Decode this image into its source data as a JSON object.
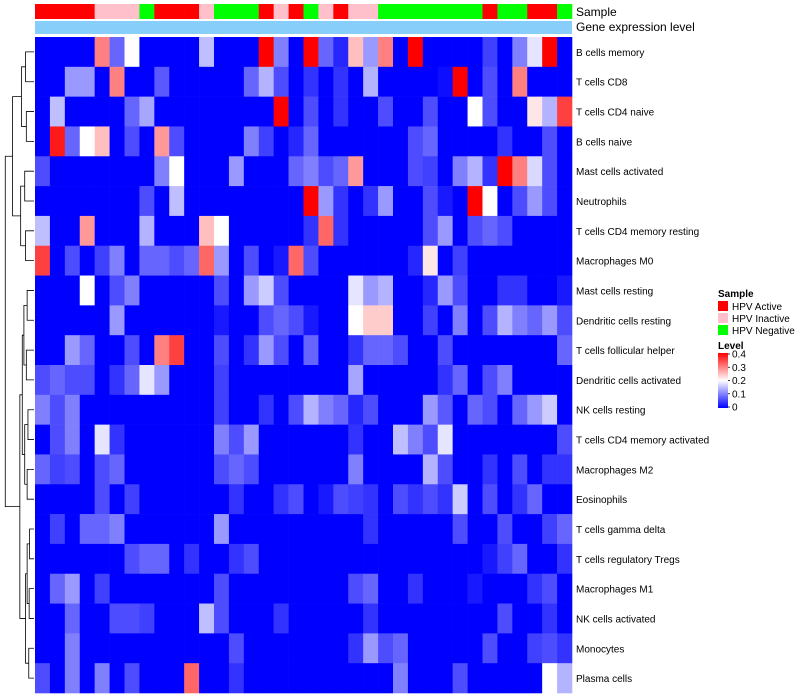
{
  "chart_data": {
    "type": "heatmap",
    "title": "",
    "annotation_labels": {
      "sample": "Sample",
      "gene_expression": "Gene expression level"
    },
    "sample_groups": [
      "A",
      "A",
      "A",
      "A",
      "I",
      "I",
      "I",
      "N",
      "A",
      "A",
      "A",
      "I",
      "N",
      "N",
      "N",
      "A",
      "I",
      "A",
      "N",
      "I",
      "A",
      "I",
      "I",
      "N",
      "N",
      "N",
      "N",
      "N",
      "N",
      "N",
      "A",
      "N",
      "N",
      "A",
      "A",
      "N"
    ],
    "rows": [
      "B cells memory",
      "T cells CD8",
      "T cells CD4 naive",
      "B cells naive",
      "Mast cells activated",
      "Neutrophils",
      "T cells CD4 memory resting",
      "Macrophages M0",
      "Mast cells resting",
      "Dendritic cells resting",
      "T cells follicular helper",
      "Dendritic cells activated",
      "NK cells resting",
      "T cells CD4 memory activated",
      "Macrophages M2",
      "Eosinophils",
      "T cells gamma delta",
      "T cells regulatory  Tregs",
      "Macrophages M1",
      "NK cells activated",
      "Monocytes",
      "Plasma cells"
    ],
    "values": [
      [
        0,
        0,
        0,
        0,
        0.3,
        0.08,
        0.2,
        0,
        0,
        0,
        0,
        0.15,
        0,
        0,
        0,
        0.42,
        0.1,
        0,
        0.42,
        0.08,
        0.03,
        0.25,
        0.12,
        0.3,
        0,
        0.4,
        0,
        0,
        0,
        0,
        0.05,
        0,
        0.1,
        0.18,
        0.4,
        0
      ],
      [
        0,
        0,
        0.12,
        0.12,
        0,
        0.3,
        0,
        0,
        0.07,
        0,
        0,
        0,
        0,
        0,
        0.08,
        0.14,
        0.06,
        0,
        0.04,
        0,
        0.04,
        0,
        0.14,
        0,
        0,
        0,
        0,
        0.01,
        0.42,
        0,
        0.06,
        0,
        0.3,
        0,
        0,
        0
      ],
      [
        0,
        0.15,
        0,
        0,
        0,
        0,
        0.08,
        0.13,
        0,
        0,
        0,
        0,
        0,
        0,
        0,
        0,
        0.42,
        0,
        0.06,
        0,
        0.04,
        0,
        0,
        0.06,
        0,
        0,
        0.06,
        0,
        0,
        0.2,
        0.06,
        0,
        0,
        0.22,
        0.14,
        0.35
      ],
      [
        0,
        0.38,
        0.08,
        0.2,
        0.25,
        0,
        0.06,
        0,
        0.28,
        0.06,
        0,
        0,
        0,
        0,
        0.1,
        0.05,
        0,
        0.03,
        0.08,
        0,
        0,
        0,
        0,
        0,
        0,
        0.06,
        0.08,
        0,
        0,
        0,
        0,
        0.04,
        0,
        0,
        0.06,
        0
      ],
      [
        0.06,
        0,
        0,
        0,
        0,
        0,
        0,
        0,
        0.1,
        0.2,
        0,
        0,
        0,
        0.12,
        0,
        0,
        0,
        0.08,
        0.1,
        0.06,
        0.08,
        0.28,
        0,
        0,
        0,
        0.06,
        0.05,
        0,
        0.1,
        0.14,
        0.04,
        0.42,
        0.3,
        0.17,
        0.06,
        0
      ],
      [
        0,
        0,
        0,
        0,
        0,
        0,
        0,
        0.06,
        0,
        0.15,
        0,
        0,
        0,
        0,
        0,
        0,
        0,
        0,
        0.42,
        0.12,
        0.04,
        0,
        0.04,
        0.12,
        0,
        0,
        0.06,
        0.02,
        0,
        0.42,
        0.2,
        0,
        0.06,
        0.12,
        0.06,
        0
      ],
      [
        0.15,
        0,
        0,
        0.28,
        0,
        0,
        0,
        0.14,
        0,
        0,
        0,
        0.25,
        0.2,
        0,
        0,
        0,
        0,
        0,
        0.04,
        0.32,
        0.04,
        0,
        0,
        0,
        0,
        0,
        0.06,
        0.12,
        0,
        0.06,
        0.08,
        0.06,
        0,
        0,
        0,
        0
      ],
      [
        0.35,
        0,
        0.06,
        0,
        0.05,
        0.1,
        0,
        0.08,
        0.08,
        0.06,
        0.08,
        0.32,
        0.12,
        0,
        0.06,
        0,
        0.02,
        0.32,
        0.06,
        0,
        0,
        0,
        0,
        0,
        0,
        0.03,
        0.22,
        0,
        0.05,
        0,
        0,
        0,
        0,
        0,
        0,
        0
      ],
      [
        0,
        0,
        0,
        0.2,
        0,
        0.06,
        0.1,
        0,
        0,
        0,
        0,
        0,
        0.06,
        0,
        0.12,
        0.16,
        0.06,
        0,
        0,
        0,
        0,
        0.18,
        0.12,
        0.14,
        0,
        0,
        0.03,
        0.12,
        0.06,
        0,
        0,
        0.04,
        0.04,
        0,
        0,
        0.02
      ],
      [
        0,
        0,
        0,
        0,
        0,
        0.12,
        0,
        0,
        0,
        0,
        0,
        0,
        0.02,
        0,
        0,
        0.06,
        0.08,
        0.06,
        0.02,
        0,
        0,
        0.2,
        0.24,
        0.24,
        0,
        0,
        0.05,
        0,
        0.1,
        0,
        0.06,
        0.14,
        0.1,
        0.08,
        0.12,
        0.06
      ],
      [
        0,
        0,
        0.12,
        0.08,
        0,
        0,
        0.06,
        0,
        0.3,
        0.35,
        0,
        0,
        0.06,
        0,
        0.04,
        0.12,
        0.06,
        0,
        0.08,
        0,
        0,
        0.04,
        0.08,
        0.08,
        0.06,
        0,
        0,
        0.06,
        0,
        0,
        0,
        0,
        0,
        0,
        0,
        0.08
      ],
      [
        0.06,
        0.08,
        0.06,
        0.06,
        0,
        0.04,
        0.08,
        0.18,
        0.12,
        0,
        0,
        0,
        0.05,
        0,
        0,
        0,
        0,
        0,
        0,
        0,
        0,
        0.13,
        0,
        0,
        0,
        0,
        0,
        0.04,
        0.08,
        0,
        0.06,
        0.1,
        0,
        0,
        0,
        0
      ],
      [
        0.1,
        0.06,
        0.1,
        0,
        0,
        0,
        0,
        0,
        0,
        0,
        0,
        0,
        0.05,
        0,
        0,
        0.04,
        0,
        0.06,
        0.14,
        0.1,
        0.08,
        0.03,
        0.06,
        0,
        0,
        0,
        0.12,
        0.07,
        0,
        0.08,
        0.06,
        0,
        0.08,
        0.12,
        0.16,
        0
      ],
      [
        0,
        0.06,
        0.1,
        0,
        0.18,
        0.04,
        0,
        0,
        0,
        0,
        0,
        0,
        0.1,
        0.06,
        0.12,
        0,
        0,
        0,
        0,
        0,
        0,
        0.04,
        0,
        0,
        0.15,
        0.1,
        0.06,
        0.18,
        0,
        0,
        0,
        0,
        0,
        0,
        0,
        0.06
      ],
      [
        0.08,
        0.05,
        0.06,
        0,
        0.06,
        0.08,
        0,
        0,
        0,
        0,
        0,
        0,
        0.06,
        0.08,
        0.06,
        0,
        0,
        0,
        0,
        0,
        0,
        0.1,
        0,
        0,
        0,
        0,
        0.14,
        0.06,
        0,
        0,
        0.04,
        0,
        0.06,
        0,
        0.04,
        0.04
      ],
      [
        0,
        0,
        0,
        0,
        0.06,
        0,
        0.05,
        0,
        0,
        0,
        0,
        0,
        0,
        0.04,
        0,
        0,
        0.04,
        0.06,
        0,
        0.02,
        0.06,
        0.05,
        0.04,
        0,
        0.06,
        0.04,
        0.06,
        0.04,
        0.16,
        0,
        0.06,
        0,
        0.04,
        0.08,
        0,
        0
      ],
      [
        0,
        0.05,
        0,
        0.08,
        0.08,
        0.1,
        0,
        0,
        0,
        0,
        0,
        0,
        0.12,
        0,
        0,
        0,
        0,
        0,
        0,
        0,
        0,
        0,
        0.04,
        0,
        0,
        0,
        0,
        0,
        0.06,
        0,
        0,
        0.06,
        0,
        0,
        0.05,
        0.08
      ],
      [
        0,
        0,
        0,
        0,
        0,
        0,
        0.06,
        0.08,
        0.08,
        0,
        0.04,
        0,
        0,
        0.04,
        0.06,
        0,
        0,
        0,
        0,
        0,
        0,
        0,
        0,
        0,
        0,
        0,
        0,
        0,
        0,
        0,
        0.02,
        0.05,
        0.08,
        0,
        0,
        0.04
      ],
      [
        0,
        0.08,
        0.12,
        0,
        0.05,
        0,
        0,
        0,
        0,
        0,
        0,
        0,
        0.06,
        0,
        0,
        0,
        0,
        0,
        0,
        0,
        0,
        0.06,
        0.08,
        0,
        0,
        0.04,
        0,
        0,
        0,
        0.02,
        0,
        0,
        0,
        0.04,
        0.06,
        0
      ],
      [
        0,
        0,
        0.08,
        0,
        0,
        0.06,
        0.06,
        0.05,
        0,
        0,
        0,
        0.15,
        0.06,
        0,
        0,
        0,
        0.04,
        0,
        0,
        0,
        0,
        0,
        0.04,
        0,
        0,
        0,
        0,
        0,
        0,
        0,
        0,
        0.06,
        0,
        0,
        0.04,
        0
      ],
      [
        0,
        0,
        0.1,
        0,
        0,
        0,
        0,
        0,
        0,
        0,
        0,
        0,
        0,
        0.06,
        0,
        0,
        0,
        0,
        0,
        0,
        0,
        0.04,
        0.12,
        0.06,
        0.08,
        0,
        0,
        0,
        0,
        0,
        0.06,
        0,
        0,
        0.05,
        0.06,
        0.04
      ],
      [
        0.06,
        0,
        0.1,
        0,
        0.1,
        0,
        0.06,
        0,
        0,
        0,
        0.32,
        0,
        0,
        0.04,
        0,
        0,
        0,
        0,
        0,
        0,
        0,
        0,
        0,
        0,
        0.1,
        0,
        0,
        0,
        0.06,
        0,
        0,
        0,
        0,
        0,
        0.2,
        0.14
      ]
    ],
    "legend": {
      "sample_title": "Sample",
      "sample_entries": [
        {
          "key": "A",
          "label": "HPV Active",
          "color": "#ff0000"
        },
        {
          "key": "I",
          "label": "HPV Inactive",
          "color": "#ffc0cb"
        },
        {
          "key": "N",
          "label": "HPV Negative",
          "color": "#00ff00"
        }
      ],
      "level_title": "Level",
      "level_ticks": [
        "0.4",
        "0.3",
        "0.2",
        "0.1",
        "0"
      ],
      "level_range": [
        0,
        0.4
      ]
    },
    "colors": {
      "low": "#0000ff",
      "mid": "#ffffff",
      "high": "#ff0000",
      "gene_expression_bar": "#87cefa"
    }
  }
}
